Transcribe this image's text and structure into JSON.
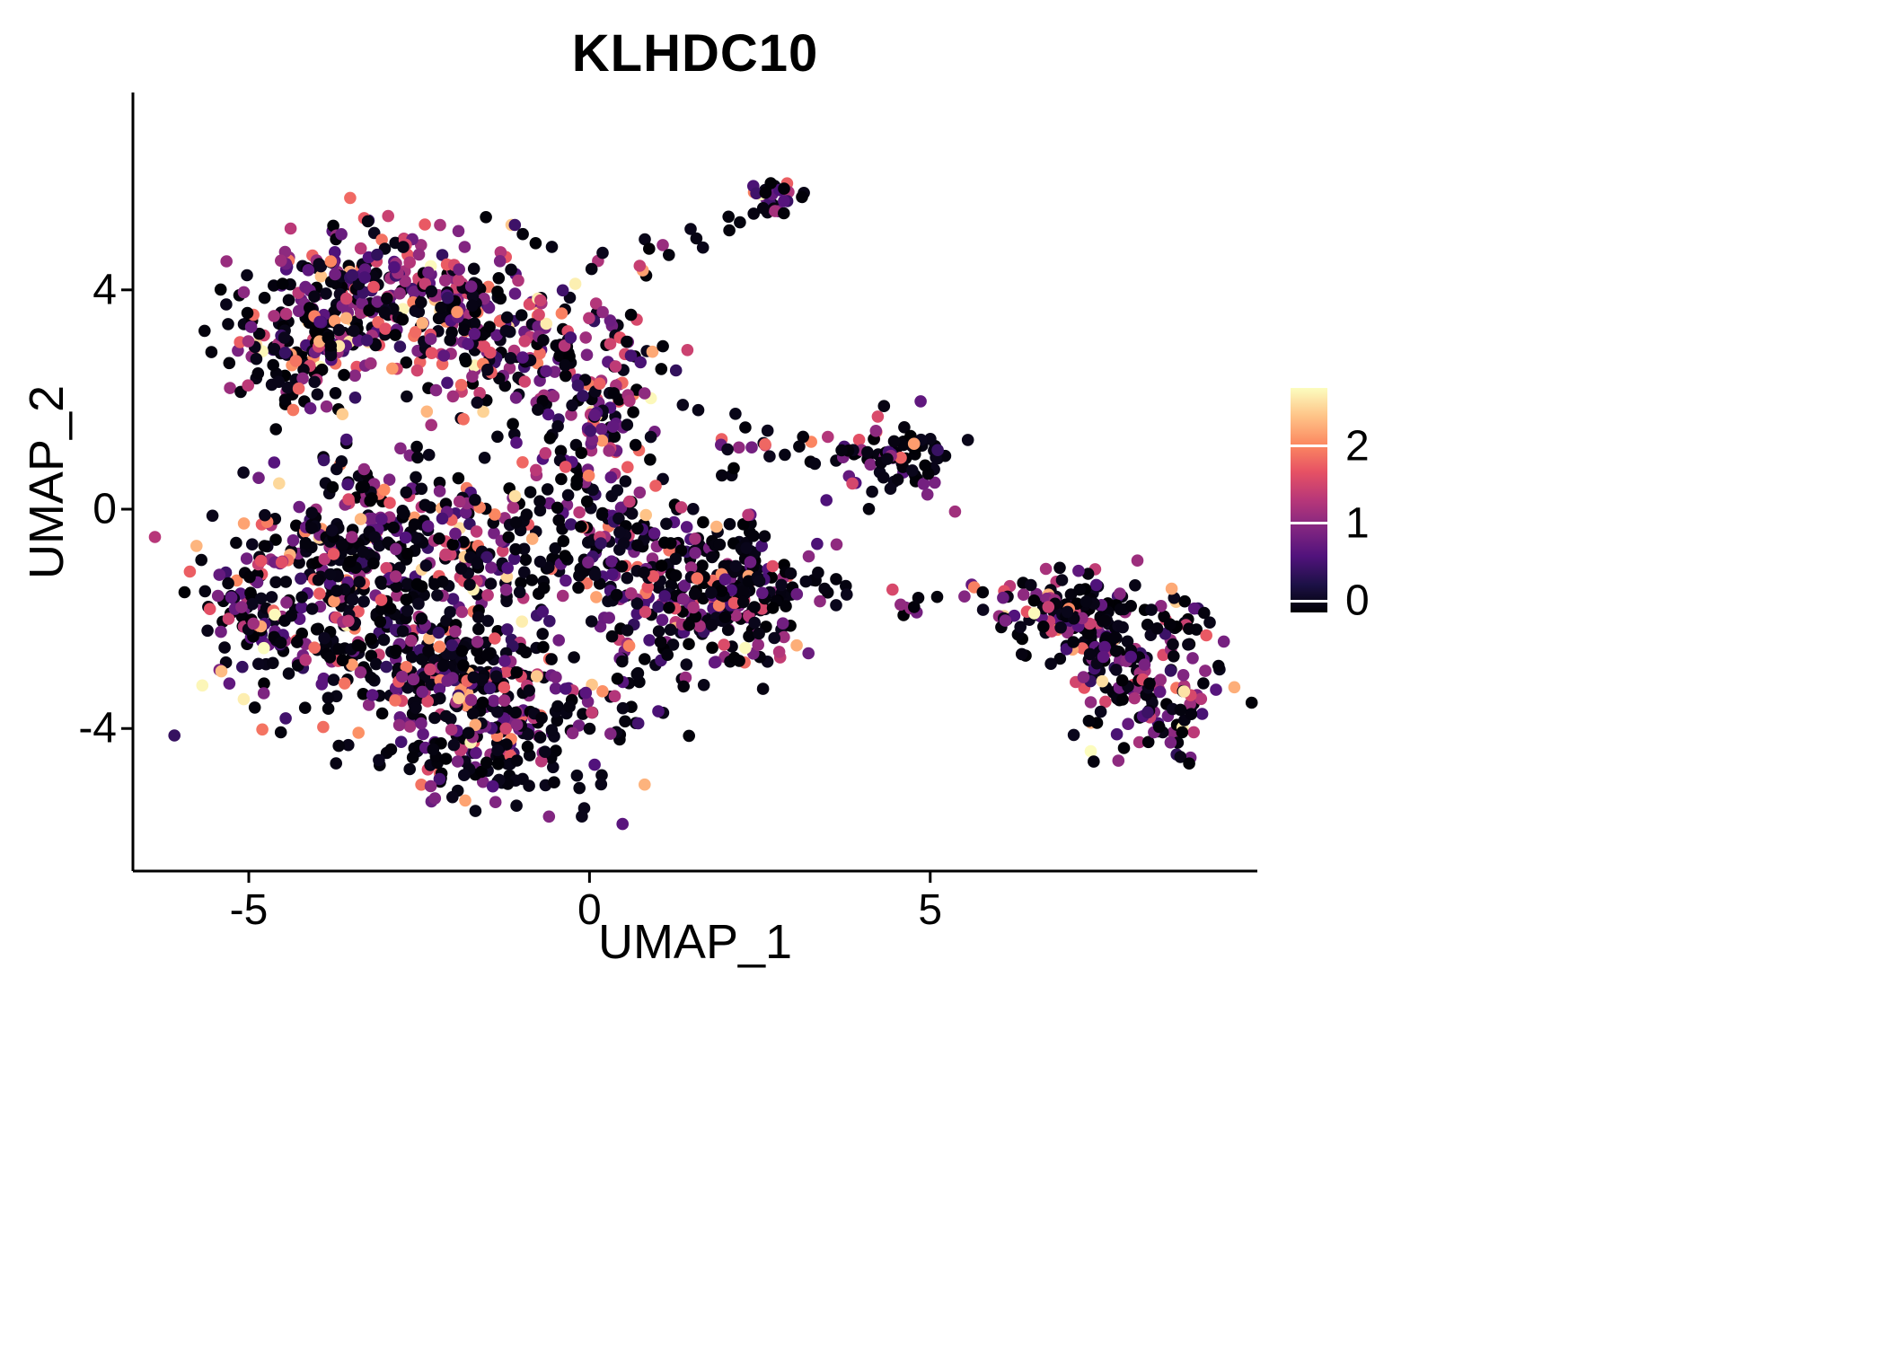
{
  "chart_data": {
    "type": "scatter",
    "title": "KLHDC10",
    "xlabel": "UMAP_1",
    "ylabel": "UMAP_2",
    "xlim": [
      -6.7,
      9.8
    ],
    "ylim": [
      -6.6,
      7.6
    ],
    "x_ticks": [
      {
        "value": -5,
        "label": "-5"
      },
      {
        "value": 0,
        "label": "0"
      },
      {
        "value": 5,
        "label": "5"
      }
    ],
    "y_ticks": [
      {
        "value": 4,
        "label": "4"
      },
      {
        "value": 0,
        "label": "0"
      },
      {
        "value": -4,
        "label": "-4"
      }
    ],
    "grid": false,
    "legend_position": "right",
    "point_radius": 6.8,
    "seed": 20240731,
    "vmax": 2.6,
    "colormap": {
      "name": "magma",
      "stops": [
        {
          "pos": 0.0,
          "color": "#000004"
        },
        {
          "pos": 0.125,
          "color": "#1d1147"
        },
        {
          "pos": 0.25,
          "color": "#51127c"
        },
        {
          "pos": 0.375,
          "color": "#822681"
        },
        {
          "pos": 0.5,
          "color": "#b73779"
        },
        {
          "pos": 0.625,
          "color": "#e65164"
        },
        {
          "pos": 0.75,
          "color": "#fc8961"
        },
        {
          "pos": 0.875,
          "color": "#fec488"
        },
        {
          "pos": 1.0,
          "color": "#fcfdbf"
        }
      ]
    },
    "colorbar": {
      "range": [
        -0.15,
        2.75
      ],
      "ticks": [
        {
          "value": 2,
          "label": "2"
        },
        {
          "value": 1,
          "label": "1"
        },
        {
          "value": 0,
          "label": "0"
        }
      ]
    },
    "expression_mix": {
      "warm": 0.4,
      "normal": 0.58,
      "cold": 0.8
    },
    "clusters": [
      {
        "name": "upper-main",
        "n": 210,
        "cx": -3.3,
        "cy": 4.0,
        "sx": 0.85,
        "sy": 0.6,
        "mix": "warm"
      },
      {
        "name": "upper-right",
        "n": 160,
        "cx": -2.0,
        "cy": 3.5,
        "sx": 0.8,
        "sy": 0.75,
        "mix": "warm"
      },
      {
        "name": "upper-left",
        "n": 120,
        "cx": -4.3,
        "cy": 3.0,
        "sx": 0.55,
        "sy": 0.5,
        "mix": "normal"
      },
      {
        "name": "upper-descend",
        "n": 130,
        "cx": -0.7,
        "cy": 2.9,
        "sx": 0.7,
        "sy": 0.85,
        "mix": "warm"
      },
      {
        "name": "right-column",
        "n": 110,
        "cx": 0.25,
        "cy": 1.6,
        "sx": 0.5,
        "sy": 1.0,
        "mix": "warm"
      },
      {
        "name": "left-mid",
        "n": 150,
        "cx": -2.9,
        "cy": -0.3,
        "sx": 0.95,
        "sy": 0.7,
        "mix": "normal"
      },
      {
        "name": "center-mid",
        "n": 120,
        "cx": -1.3,
        "cy": -0.7,
        "sx": 0.8,
        "sy": 0.75,
        "mix": "normal"
      },
      {
        "name": "lower-left",
        "n": 230,
        "cx": -3.6,
        "cy": -1.7,
        "sx": 0.9,
        "sy": 1.0,
        "mix": "normal"
      },
      {
        "name": "left-edge",
        "n": 80,
        "cx": -4.95,
        "cy": -2.1,
        "sx": 0.35,
        "sy": 0.75,
        "mix": "normal"
      },
      {
        "name": "lower-center",
        "n": 210,
        "cx": -2.2,
        "cy": -2.7,
        "sx": 0.9,
        "sy": 0.9,
        "mix": "normal"
      },
      {
        "name": "bottom",
        "n": 180,
        "cx": -1.2,
        "cy": -3.7,
        "sx": 0.85,
        "sy": 0.65,
        "mix": "normal"
      },
      {
        "name": "bottom-tip",
        "n": 60,
        "cx": -1.4,
        "cy": -4.7,
        "sx": 0.6,
        "sy": 0.3,
        "mix": "normal"
      },
      {
        "name": "right-lobe",
        "n": 200,
        "cx": 1.3,
        "cy": -1.8,
        "sx": 0.8,
        "sy": 0.85,
        "mix": "normal"
      },
      {
        "name": "right-lobe-tip",
        "n": 130,
        "cx": 2.25,
        "cy": -1.3,
        "sx": 0.5,
        "sy": 0.65,
        "mix": "cold"
      },
      {
        "name": "center-notch",
        "n": 70,
        "cx": 0.5,
        "cy": -0.5,
        "sx": 0.5,
        "sy": 0.5,
        "mix": "normal"
      },
      {
        "name": "top-satellite",
        "n": 28,
        "cx": 2.75,
        "cy": 5.65,
        "sx": 0.2,
        "sy": 0.18,
        "mix": "warm"
      },
      {
        "name": "bridge-trail",
        "type": "trail",
        "n": 14,
        "x1": 0.55,
        "y1": 4.35,
        "x2": 2.5,
        "y2": 5.35,
        "jitter": 0.18,
        "mix": "warm"
      },
      {
        "name": "mid-satellite",
        "n": 80,
        "cx": 4.5,
        "cy": 0.85,
        "sx": 0.45,
        "sy": 0.35,
        "mix": "normal"
      },
      {
        "name": "mid-satellite-left",
        "n": 14,
        "cx": 2.4,
        "cy": 1.2,
        "sx": 0.3,
        "sy": 0.2,
        "mix": "warm"
      },
      {
        "name": "mid-scatter",
        "type": "trail",
        "n": 8,
        "x1": 2.7,
        "y1": 1.15,
        "x2": 3.9,
        "y2": 1.0,
        "jitter": 0.25,
        "mix": "normal"
      },
      {
        "name": "connector-dots",
        "type": "trail",
        "n": 9,
        "x1": 2.9,
        "y1": -1.1,
        "x2": 4.3,
        "y2": -1.4,
        "jitter": 0.15,
        "mix": "cold"
      },
      {
        "name": "connector-pair",
        "n": 7,
        "cx": 4.75,
        "cy": -1.8,
        "sx": 0.22,
        "sy": 0.14,
        "mix": "warm"
      },
      {
        "name": "connector-dot2",
        "n": 5,
        "cx": 5.55,
        "cy": -1.6,
        "sx": 0.18,
        "sy": 0.1,
        "mix": "cold"
      },
      {
        "name": "east-upper",
        "n": 85,
        "cx": 6.8,
        "cy": -1.75,
        "sx": 0.55,
        "sy": 0.38,
        "mix": "normal"
      },
      {
        "name": "east-mid",
        "n": 60,
        "cx": 7.6,
        "cy": -2.4,
        "sx": 0.5,
        "sy": 0.42,
        "mix": "normal"
      },
      {
        "name": "east-band",
        "type": "trail",
        "n": 45,
        "x1": 6.9,
        "y1": -1.9,
        "x2": 8.2,
        "y2": -3.4,
        "jitter": 0.3,
        "mix": "normal"
      },
      {
        "name": "east-lower",
        "n": 95,
        "cx": 8.25,
        "cy": -3.6,
        "sx": 0.5,
        "sy": 0.5,
        "mix": "normal"
      },
      {
        "name": "east-right",
        "n": 30,
        "cx": 8.6,
        "cy": -2.0,
        "sx": 0.3,
        "sy": 0.28,
        "mix": "normal"
      }
    ]
  }
}
